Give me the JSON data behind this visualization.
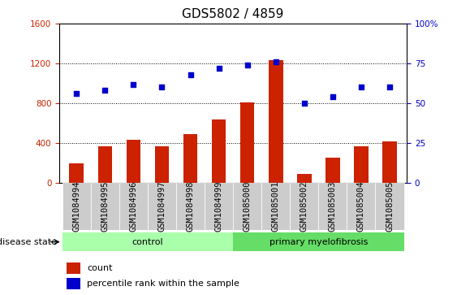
{
  "title": "GDS5802 / 4859",
  "samples": [
    "GSM1084994",
    "GSM1084995",
    "GSM1084996",
    "GSM1084997",
    "GSM1084998",
    "GSM1084999",
    "GSM1085000",
    "GSM1085001",
    "GSM1085002",
    "GSM1085003",
    "GSM1085004",
    "GSM1085005"
  ],
  "counts": [
    200,
    370,
    430,
    370,
    490,
    640,
    810,
    1230,
    90,
    250,
    370,
    420
  ],
  "percentiles": [
    56,
    58,
    62,
    60,
    68,
    72,
    74,
    76,
    50,
    54,
    60,
    60
  ],
  "bar_color": "#cc2200",
  "dot_color": "#0000cc",
  "control_color": "#aaffaa",
  "disease_color": "#66dd66",
  "tick_bg_color": "#cccccc",
  "left_ylim": [
    0,
    1600
  ],
  "right_ylim": [
    0,
    100
  ],
  "left_yticks": [
    0,
    400,
    800,
    1200,
    1600
  ],
  "right_yticks": [
    0,
    25,
    50,
    75,
    100
  ],
  "control_indices": [
    0,
    1,
    2,
    3,
    4,
    5
  ],
  "disease_indices": [
    6,
    7,
    8,
    9,
    10,
    11
  ],
  "control_label": "control",
  "disease_label": "primary myelofibrosis",
  "disease_state_label": "disease state",
  "legend_count_label": "count",
  "legend_percentile_label": "percentile rank within the sample",
  "title_fontsize": 11,
  "axis_fontsize": 8,
  "tick_fontsize": 7.5,
  "bar_width": 0.5
}
